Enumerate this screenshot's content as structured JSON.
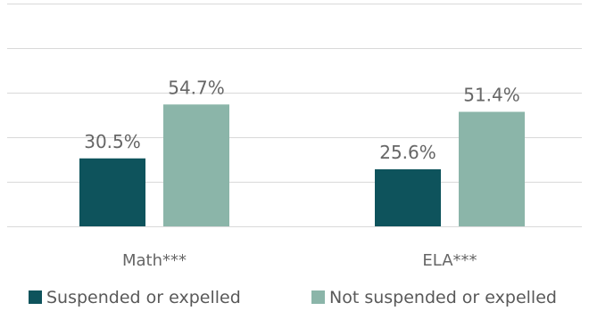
{
  "chart_data": {
    "type": "bar",
    "title": "",
    "xlabel": "",
    "ylabel": "",
    "categories": [
      "Math***",
      "ELA***"
    ],
    "series": [
      {
        "name": "Suspended or expelled",
        "values": [
          30.5,
          25.6
        ],
        "labels": [
          "30.5%",
          "25.6%"
        ],
        "color": "#0e535c"
      },
      {
        "name": "Not suspended or expelled",
        "values": [
          54.7,
          51.4
        ],
        "labels": [
          "54.7%",
          "51.4%"
        ],
        "color": "#8bb5a9"
      }
    ],
    "ylim": [
      0,
      100
    ],
    "gridlines": [
      0,
      20,
      40,
      60,
      80,
      100
    ],
    "grid": true,
    "y_axis_labels_shown": false,
    "legend": "bottom"
  }
}
